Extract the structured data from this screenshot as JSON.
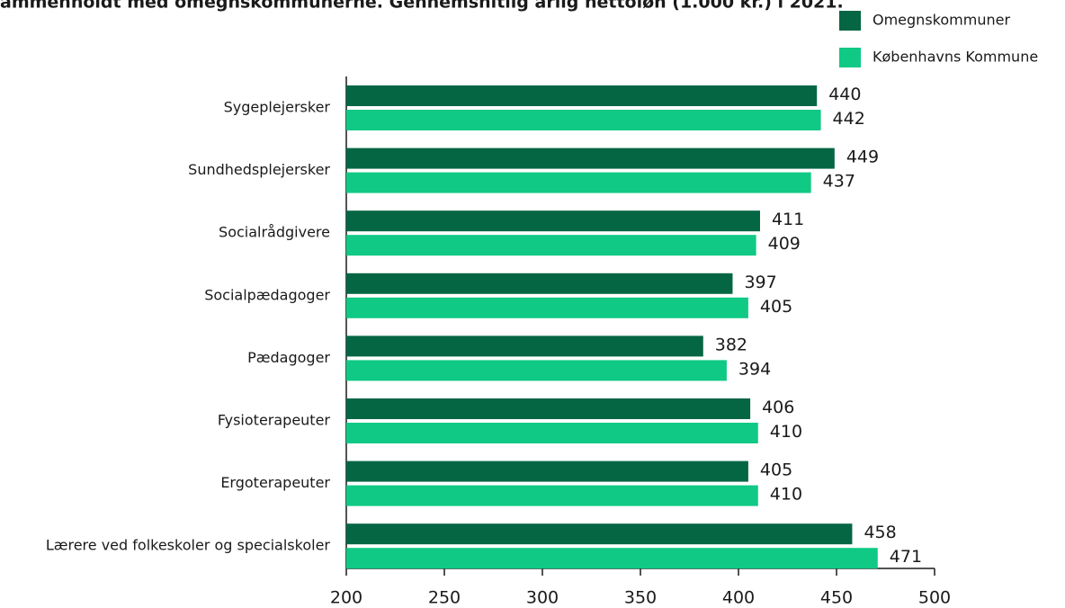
{
  "chart_data": {
    "type": "barh",
    "title": "ammenholdt med omegnskommunerne. Gennemsnitlig årlig nettoløn (1.000 kr.) i 2021.",
    "categories": [
      "Sygeplejersker",
      "Sundhedsplejersker",
      "Socialrådgivere",
      "Socialpædagoger",
      "Pædagoger",
      "Fysioterapeuter",
      "Ergoterapeuter",
      "Lærere ved folkeskoler og specialskoler"
    ],
    "series": [
      {
        "name": "Omegnskommuner",
        "color": "#056644",
        "values": [
          440,
          449,
          411,
          397,
          382,
          406,
          405,
          458
        ]
      },
      {
        "name": "Københavns Kommune",
        "color": "#10c985",
        "values": [
          442,
          437,
          409,
          405,
          394,
          410,
          410,
          471
        ]
      }
    ],
    "xlim": [
      200,
      500
    ],
    "xticks": [
      200,
      250,
      300,
      350,
      400,
      450,
      500
    ]
  }
}
